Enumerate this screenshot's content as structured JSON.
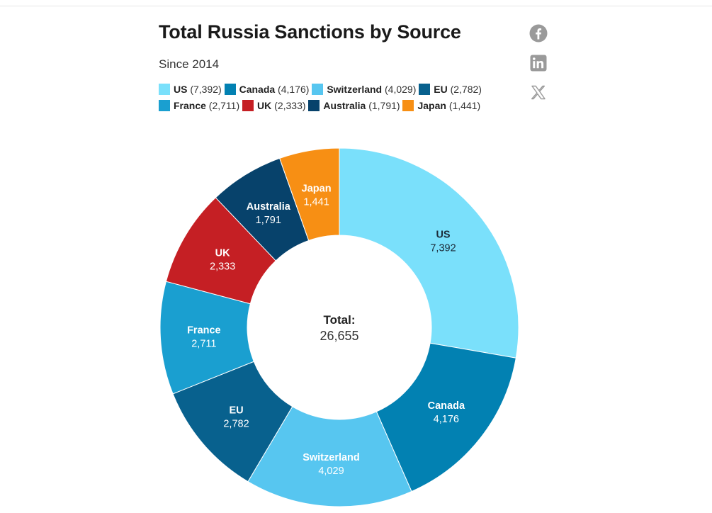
{
  "header": {
    "title": "Total Russia Sanctions by Source",
    "subtitle": "Since 2014"
  },
  "share": {
    "icons": [
      "facebook-icon",
      "linkedin-icon",
      "x-icon"
    ]
  },
  "colors": {
    "US": "#7ae0fb",
    "Canada": "#0281b2",
    "Switzerland": "#57c6f0",
    "EU": "#08618e",
    "France": "#1a9fd0",
    "UK": "#c51f24",
    "Australia": "#07426b",
    "Japan": "#f78f14",
    "icon": "#9a9a9a"
  },
  "chart_data": {
    "type": "pie",
    "donut": true,
    "title": "Total Russia Sanctions by Source",
    "subtitle": "Since 2014",
    "categories": [
      "US",
      "Canada",
      "Switzerland",
      "EU",
      "France",
      "UK",
      "Australia",
      "Japan"
    ],
    "values": [
      7392,
      4176,
      4029,
      2782,
      2711,
      2333,
      1791,
      1441
    ],
    "value_labels": [
      "7,392",
      "4,176",
      "4,029",
      "2,782",
      "2,711",
      "2,333",
      "1,791",
      "1,441"
    ],
    "legend_labels": [
      "(7,392)",
      "(4,176)",
      "(4,029)",
      "(2,782)",
      "(2,711)",
      "(2,333)",
      "(1,791)",
      "(1,441)"
    ],
    "center_label": "Total:",
    "center_value": "26,655",
    "legend_position": "top"
  }
}
